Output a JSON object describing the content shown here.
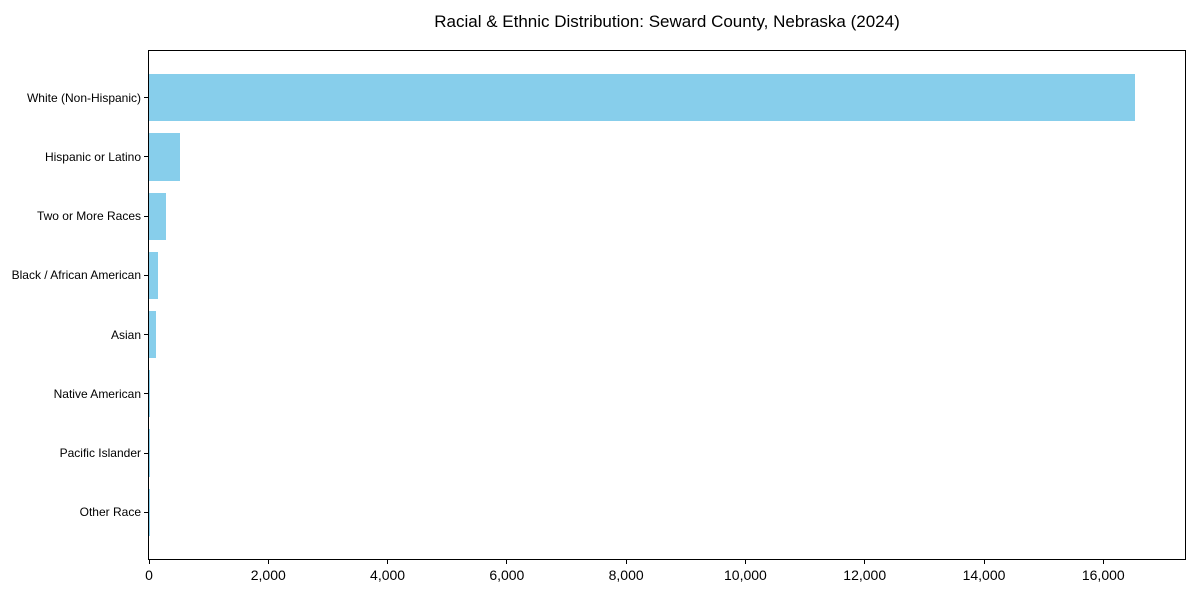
{
  "chart_data": {
    "type": "bar",
    "orientation": "horizontal",
    "title": "Racial & Ethnic Distribution: Seward County, Nebraska (2024)",
    "categories": [
      "White (Non-Hispanic)",
      "Hispanic or Latino",
      "Two or More Races",
      "Black / African American",
      "Asian",
      "Native American",
      "Pacific Islander",
      "Other Race"
    ],
    "values": [
      16540,
      520,
      280,
      155,
      120,
      20,
      5,
      3
    ],
    "xlabel": "",
    "ylabel": "",
    "xlim": [
      0,
      17370
    ],
    "x_ticks": [
      0,
      2000,
      4000,
      6000,
      8000,
      10000,
      12000,
      14000,
      16000
    ],
    "x_tick_labels": [
      "0",
      "2,000",
      "4,000",
      "6,000",
      "8,000",
      "10,000",
      "12,000",
      "14,000",
      "16,000"
    ],
    "grid": false,
    "legend": null,
    "bar_color": "#87ceeb",
    "text_color": "#000000",
    "spine_color": "#000000",
    "background_color": "#ffffff"
  }
}
